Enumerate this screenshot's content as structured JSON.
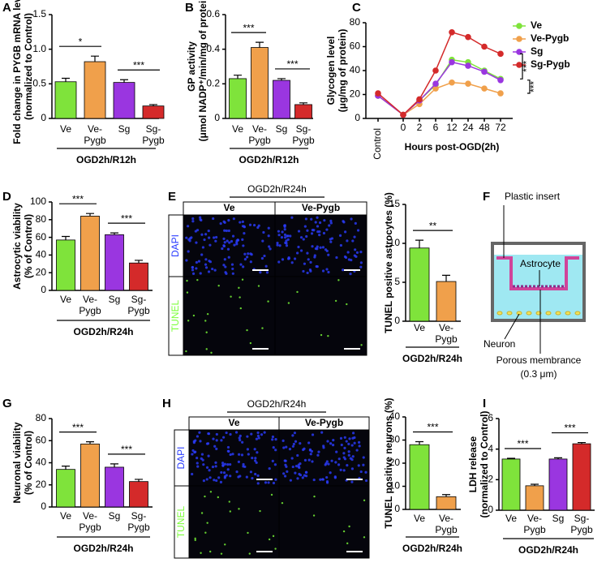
{
  "panel_labels": [
    "A",
    "B",
    "C",
    "D",
    "E",
    "F",
    "G",
    "H",
    "I"
  ],
  "chart_data": [
    {
      "type": "bar",
      "ylabel": [
        "Fold change in PYGB mRNA level",
        "(normalized to Control)"
      ],
      "categories": [
        "Ve",
        "Ve-Pygb",
        "Sg",
        "Sg-Pygb"
      ],
      "values": [
        0.53,
        0.82,
        0.52,
        0.18
      ],
      "errors": [
        0.05,
        0.08,
        0.04,
        0.02
      ],
      "colors": [
        "#7fe33b",
        "#f0a04b",
        "#9a36e0",
        "#d42a2a"
      ],
      "ylim": [
        0,
        1.5
      ],
      "yticks": [
        0,
        0.5,
        {
          "value": 1,
          "label": "1.0"
        },
        1.5
      ],
      "significance": [
        {
          "from": "Ve",
          "to": "Ve-Pygb",
          "label": "*"
        },
        {
          "from": "Sg",
          "to": "Sg-Pygb",
          "label": "***"
        }
      ],
      "group_label": "OGD2h/R12h"
    },
    {
      "type": "bar",
      "ylabel": [
        "GP activity",
        "(μmol NADP⁺/min/mg of protein)"
      ],
      "categories": [
        "Ve",
        "Ve-Pygb",
        "Sg",
        "Sg-Pygb"
      ],
      "values": [
        0.23,
        0.41,
        0.22,
        0.08
      ],
      "errors": [
        0.02,
        0.03,
        0.01,
        0.01
      ],
      "colors": [
        "#7fe33b",
        "#f0a04b",
        "#9a36e0",
        "#d42a2a"
      ],
      "ylim": [
        0,
        0.6
      ],
      "yticks": [
        0,
        0.2,
        0.4,
        0.6
      ],
      "significance": [
        {
          "from": "Ve",
          "to": "Ve-Pygb",
          "label": "***"
        },
        {
          "from": "Sg",
          "to": "Sg-Pygb",
          "label": "***"
        }
      ],
      "group_label": "OGD2h/R12h"
    },
    {
      "type": "line",
      "ylabel": [
        "Glycogen level",
        "(μg/mg of protein)"
      ],
      "xlabel": "Hours post-OGD(2h)",
      "categories": [
        "Control",
        "0",
        "2",
        "6",
        "12",
        "24",
        "48",
        "72"
      ],
      "ylim": [
        0,
        80
      ],
      "yticks": [
        0,
        20,
        40,
        60,
        80
      ],
      "series": [
        {
          "name": "Ve",
          "color": "#7fe33b",
          "values": [
            19,
            3,
            15,
            28,
            49,
            47,
            40,
            33
          ]
        },
        {
          "name": "Ve-Pygb",
          "color": "#f0a04b",
          "values": [
            19,
            3,
            12,
            25,
            30,
            29,
            25,
            21
          ]
        },
        {
          "name": "Sg",
          "color": "#9a36e0",
          "values": [
            19,
            3,
            15,
            29,
            47,
            44,
            39,
            32
          ]
        },
        {
          "name": "Sg-Pygb",
          "color": "#d42a2a",
          "values": [
            21,
            3,
            16,
            40,
            72,
            68,
            60,
            54
          ]
        }
      ],
      "significance": [
        "***",
        "***"
      ],
      "legend": "right"
    },
    {
      "type": "bar",
      "ylabel": [
        "Astrocytic viability",
        "(% of Control)"
      ],
      "categories": [
        "Ve",
        "Ve-Pygb",
        "Sg",
        "Sg-Pygb"
      ],
      "values": [
        57,
        84,
        63,
        31
      ],
      "errors": [
        4,
        3,
        2,
        3
      ],
      "colors": [
        "#7fe33b",
        "#f0a04b",
        "#9a36e0",
        "#d42a2a"
      ],
      "ylim": [
        0,
        100
      ],
      "yticks": [
        0,
        20,
        40,
        60,
        80,
        100
      ],
      "significance": [
        {
          "from": "Ve",
          "to": "Ve-Pygb",
          "label": "***"
        },
        {
          "from": "Sg",
          "to": "Sg-Pygb",
          "label": "***"
        }
      ],
      "group_label": "OGD2h/R24h"
    },
    {
      "type": "bar",
      "ylabel": [
        "TUNEL positive astrocytes (%)"
      ],
      "categories": [
        "Ve",
        "Ve-Pygb"
      ],
      "values": [
        9.4,
        5.1
      ],
      "errors": [
        1.0,
        0.8
      ],
      "colors": [
        "#7fe33b",
        "#f0a04b"
      ],
      "ylim": [
        0,
        15
      ],
      "yticks": [
        0,
        5,
        10,
        15
      ],
      "significance": [
        {
          "from": "Ve",
          "to": "Ve-Pygb",
          "label": "**"
        }
      ],
      "group_label": "OGD2h/R24h"
    },
    {
      "type": "bar",
      "ylabel": [
        "Neuronal viability",
        "(% of Control)"
      ],
      "categories": [
        "Ve",
        "Ve-Pygb",
        "Sg",
        "Sg-Pygb"
      ],
      "values": [
        34,
        57,
        36,
        23
      ],
      "errors": [
        3,
        2,
        3,
        2
      ],
      "colors": [
        "#7fe33b",
        "#f0a04b",
        "#9a36e0",
        "#d42a2a"
      ],
      "ylim": [
        0,
        80
      ],
      "yticks": [
        0,
        20,
        40,
        60,
        80
      ],
      "significance": [
        {
          "from": "Ve",
          "to": "Ve-Pygb",
          "label": "***"
        },
        {
          "from": "Sg",
          "to": "Sg-Pygb",
          "label": "***"
        }
      ],
      "group_label": "OGD2h/R24h"
    },
    {
      "type": "bar",
      "ylabel": [
        "TUNEL positive neurons (%)"
      ],
      "categories": [
        "Ve",
        "Ve-Pygb"
      ],
      "values": [
        28,
        5.5
      ],
      "errors": [
        1.3,
        0.9
      ],
      "colors": [
        "#7fe33b",
        "#f0a04b"
      ],
      "ylim": [
        0,
        40
      ],
      "yticks": [
        0,
        10,
        20,
        30,
        40
      ],
      "significance": [
        {
          "from": "Ve",
          "to": "Ve-Pygb",
          "label": "***"
        }
      ],
      "group_label": "OGD2h/R24h"
    },
    {
      "type": "bar",
      "ylabel": [
        "LDH release",
        "(normalized to Control)"
      ],
      "categories": [
        "Ve",
        "Ve-Pygb",
        "Sg",
        "Sg-Pygb"
      ],
      "values": [
        3.35,
        1.6,
        3.35,
        4.35
      ],
      "errors": [
        0.05,
        0.1,
        0.08,
        0.08
      ],
      "colors": [
        "#7fe33b",
        "#f0a04b",
        "#9a36e0",
        "#d42a2a"
      ],
      "ylim": [
        0,
        6
      ],
      "yticks": [
        0,
        2,
        4,
        6
      ],
      "significance": [
        {
          "from": "Ve",
          "to": "Ve-Pygb",
          "label": "***"
        },
        {
          "from": "Sg",
          "to": "Sg-Pygb",
          "label": "***"
        }
      ],
      "group_label": "OGD2h/R24h"
    }
  ],
  "images": [
    {
      "header": "OGD2h/R24h",
      "columns": [
        "Ve",
        "Ve-Pygb"
      ],
      "rows": [
        "DAPI",
        "TUNEL"
      ]
    },
    {
      "header": "OGD2h/R24h",
      "columns": [
        "Ve",
        "Ve-Pygb"
      ],
      "rows": [
        "DAPI",
        "TUNEL"
      ]
    }
  ],
  "diagram": {
    "insert": "Plastic insert",
    "astrocyte": "Astrocyte",
    "neuron": "Neuron",
    "membrane": "Porous membrance",
    "pore": "(0.3 μm)"
  }
}
